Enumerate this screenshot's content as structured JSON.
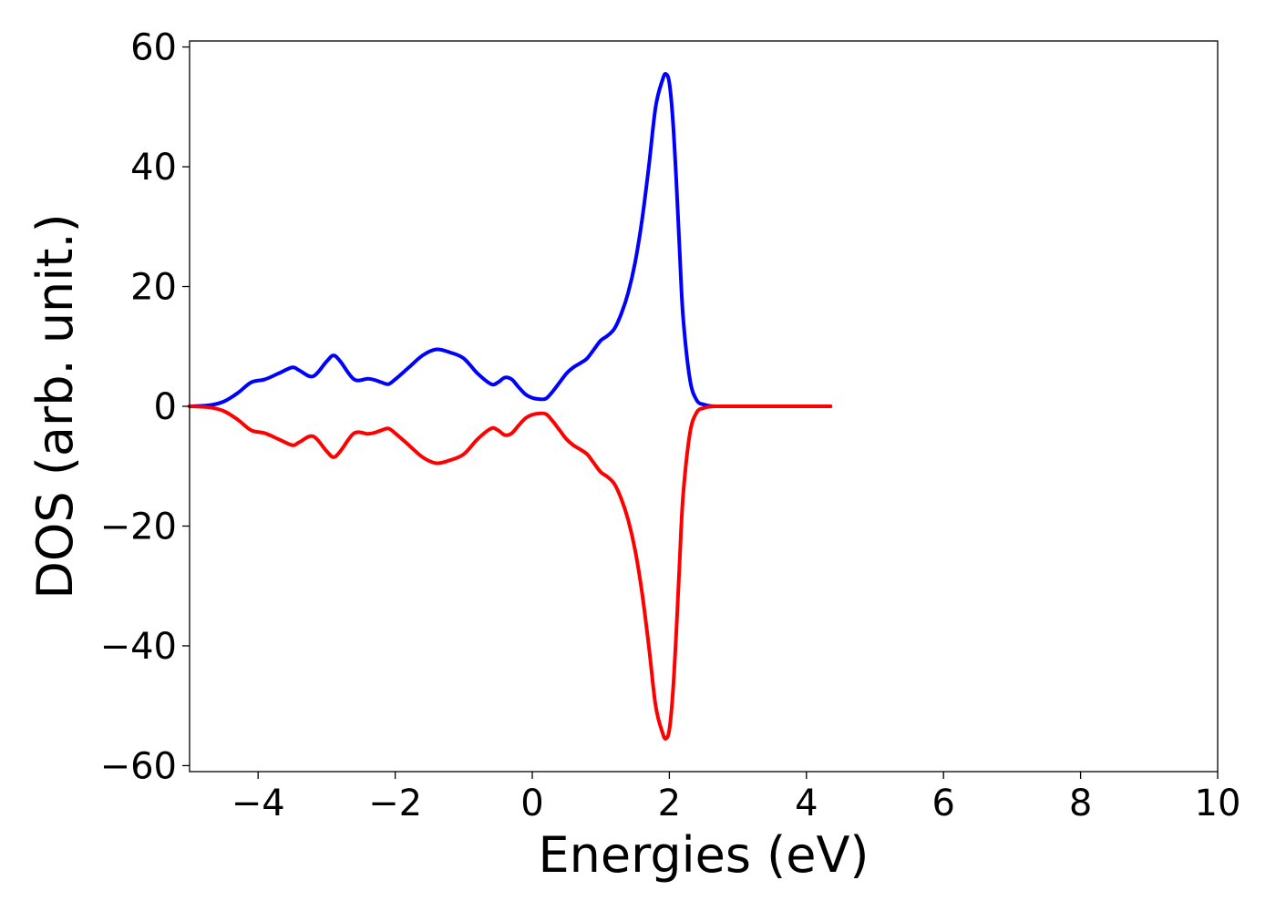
{
  "chart_data": {
    "type": "line",
    "title": "",
    "xlabel": "Energies (eV)",
    "ylabel": "DOS (arb. unit.)",
    "xlim": [
      -5,
      10
    ],
    "ylim": [
      -61,
      61
    ],
    "x_ticks": [
      -4,
      -2,
      0,
      2,
      4,
      6,
      8,
      10
    ],
    "y_ticks": [
      -60,
      -40,
      -20,
      0,
      20,
      40,
      60
    ],
    "x_tick_labels": [
      "−4",
      "−2",
      "0",
      "2",
      "4",
      "6",
      "8",
      "10"
    ],
    "y_tick_labels": [
      "−60",
      "−40",
      "−20",
      "0",
      "20",
      "40",
      "60"
    ],
    "grid": false,
    "legend": "none",
    "series": [
      {
        "color": "#0000ff",
        "x": [
          -5.0,
          -4.7,
          -4.5,
          -4.3,
          -4.1,
          -3.9,
          -3.7,
          -3.5,
          -3.4,
          -3.2,
          -3.0,
          -2.9,
          -2.8,
          -2.6,
          -2.4,
          -2.3,
          -2.2,
          -2.1,
          -2.0,
          -1.8,
          -1.6,
          -1.4,
          -1.2,
          -1.0,
          -0.8,
          -0.6,
          -0.5,
          -0.4,
          -0.3,
          -0.2,
          -0.1,
          0.0,
          0.1,
          0.2,
          0.3,
          0.4,
          0.5,
          0.6,
          0.7,
          0.8,
          0.9,
          1.0,
          1.1,
          1.2,
          1.3,
          1.4,
          1.5,
          1.6,
          1.7,
          1.8,
          1.9,
          1.95,
          2.0,
          2.05,
          2.1,
          2.15,
          2.2,
          2.3,
          2.4,
          2.5,
          2.6,
          2.7,
          2.8,
          3.0,
          3.5,
          4.0,
          4.35
        ],
        "y": [
          0.0,
          0.2,
          0.8,
          2.2,
          4.0,
          4.5,
          5.5,
          6.5,
          6.0,
          5.0,
          7.5,
          8.5,
          7.5,
          4.5,
          4.6,
          4.4,
          4.0,
          3.7,
          4.5,
          6.5,
          8.5,
          9.5,
          9.0,
          8.0,
          5.5,
          3.7,
          4.0,
          4.8,
          4.5,
          3.2,
          2.0,
          1.4,
          1.2,
          1.3,
          2.5,
          4.0,
          5.5,
          6.5,
          7.2,
          8.0,
          9.5,
          11.0,
          11.8,
          13.0,
          15.5,
          19.0,
          24.0,
          31.0,
          40.0,
          50.0,
          54.5,
          55.5,
          54.0,
          48.0,
          38.0,
          26.0,
          15.0,
          4.5,
          1.0,
          0.3,
          0.05,
          0.0,
          0.0,
          0.0,
          0.0,
          0.0,
          0.0
        ]
      },
      {
        "color": "#ff0000",
        "x": [
          -5.0,
          -4.7,
          -4.5,
          -4.3,
          -4.1,
          -3.9,
          -3.7,
          -3.5,
          -3.4,
          -3.2,
          -3.0,
          -2.9,
          -2.8,
          -2.6,
          -2.4,
          -2.3,
          -2.2,
          -2.1,
          -2.0,
          -1.8,
          -1.6,
          -1.4,
          -1.2,
          -1.0,
          -0.8,
          -0.6,
          -0.5,
          -0.4,
          -0.3,
          -0.2,
          -0.1,
          0.0,
          0.1,
          0.2,
          0.3,
          0.4,
          0.5,
          0.6,
          0.7,
          0.8,
          0.9,
          1.0,
          1.1,
          1.2,
          1.3,
          1.4,
          1.5,
          1.6,
          1.7,
          1.8,
          1.9,
          1.95,
          2.0,
          2.05,
          2.1,
          2.15,
          2.2,
          2.3,
          2.4,
          2.5,
          2.6,
          2.7,
          2.8,
          3.0,
          3.5,
          4.0,
          4.35
        ],
        "y": [
          0.0,
          -0.2,
          -0.8,
          -2.2,
          -4.0,
          -4.5,
          -5.5,
          -6.5,
          -6.0,
          -5.0,
          -7.5,
          -8.5,
          -7.5,
          -4.5,
          -4.6,
          -4.4,
          -4.0,
          -3.7,
          -4.5,
          -6.5,
          -8.5,
          -9.5,
          -9.0,
          -8.0,
          -5.5,
          -3.7,
          -4.0,
          -4.8,
          -4.5,
          -3.2,
          -2.0,
          -1.4,
          -1.2,
          -1.3,
          -2.5,
          -4.0,
          -5.5,
          -6.5,
          -7.2,
          -8.0,
          -9.5,
          -11.0,
          -11.8,
          -13.0,
          -15.5,
          -19.0,
          -24.0,
          -31.0,
          -40.0,
          -50.0,
          -54.5,
          -55.5,
          -54.0,
          -48.0,
          -38.0,
          -26.0,
          -15.0,
          -4.5,
          -1.0,
          -0.3,
          -0.05,
          0.0,
          0.0,
          0.0,
          0.0,
          0.0,
          0.0
        ]
      }
    ]
  }
}
